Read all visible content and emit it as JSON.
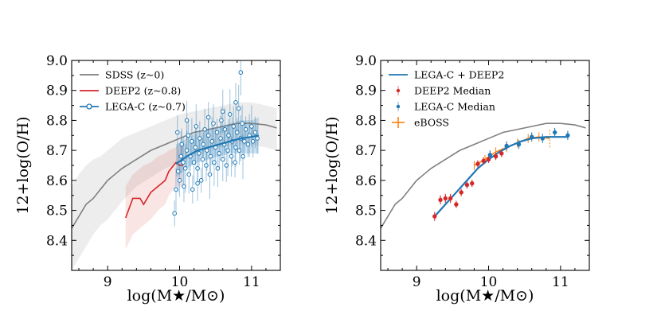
{
  "chart_data": [
    {
      "type": "scatter",
      "panel": "left",
      "xlabel": "log(M★/M⊙)",
      "ylabel": "12+log(O/H)",
      "xlim": [
        8.5,
        11.4
      ],
      "ylim": [
        8.3,
        9.0
      ],
      "xticks": [
        9,
        10,
        11
      ],
      "yticks": [
        8.4,
        8.5,
        8.6,
        8.7,
        8.8,
        8.9,
        9.0
      ],
      "ytick_labels": [
        "8.4",
        "8.5",
        "8.6",
        "8.7",
        "8.8",
        "8.9",
        "9.0"
      ],
      "legend_position": "top-left",
      "legend": [
        "SDSS (z~0)",
        "DEEP2 (z~0.8)",
        "LEGA-C (z~0.7)"
      ],
      "series": [
        {
          "name": "SDSS (z~0)",
          "color": "#808080",
          "x": [
            8.5,
            8.6,
            8.7,
            8.8,
            8.9,
            9.0,
            9.1,
            9.2,
            9.4,
            9.6,
            9.8,
            10.0,
            10.2,
            10.4,
            10.6,
            10.8,
            11.0,
            11.2,
            11.35
          ],
          "y": [
            8.44,
            8.48,
            8.52,
            8.54,
            8.57,
            8.6,
            8.62,
            8.64,
            8.67,
            8.7,
            8.72,
            8.74,
            8.76,
            8.77,
            8.78,
            8.79,
            8.79,
            8.785,
            8.775
          ],
          "band_lower": [
            8.3,
            8.34,
            8.38,
            8.42,
            8.45,
            8.47,
            8.5,
            8.53,
            8.58,
            8.61,
            8.64,
            8.66,
            8.68,
            8.7,
            8.71,
            8.72,
            8.72,
            8.71,
            8.7
          ],
          "band_upper": [
            8.58,
            8.62,
            8.65,
            8.67,
            8.68,
            8.7,
            8.72,
            8.74,
            8.76,
            8.78,
            8.8,
            8.82,
            8.83,
            8.84,
            8.85,
            8.86,
            8.86,
            8.85,
            8.84
          ]
        },
        {
          "name": "DEEP2 (z~0.8)",
          "color": "#d62728",
          "x": [
            9.25,
            9.35,
            9.45,
            9.5,
            9.6,
            9.7,
            9.8,
            9.85,
            9.95,
            10.0,
            10.05
          ],
          "y": [
            8.475,
            8.54,
            8.54,
            8.52,
            8.56,
            8.58,
            8.6,
            8.63,
            8.66,
            8.65,
            8.65
          ],
          "band_lower": [
            8.37,
            8.42,
            8.44,
            8.45,
            8.47,
            8.5,
            8.52,
            8.55,
            8.58,
            8.58,
            8.58
          ],
          "band_upper": [
            8.58,
            8.62,
            8.64,
            8.65,
            8.66,
            8.68,
            8.69,
            8.7,
            8.71,
            8.72,
            8.72
          ]
        },
        {
          "name": "LEGA-C (z~0.7)",
          "color": "#1f77b4",
          "fit_x": [
            9.95,
            10.1,
            10.25,
            10.4,
            10.55,
            10.7,
            10.85,
            11.0,
            11.1
          ],
          "fit_y": [
            8.655,
            8.68,
            8.7,
            8.71,
            8.72,
            8.73,
            8.74,
            8.745,
            8.75
          ],
          "band_lower": [
            8.61,
            8.64,
            8.66,
            8.67,
            8.68,
            8.69,
            8.69,
            8.69,
            8.69
          ],
          "band_upper": [
            8.72,
            8.74,
            8.76,
            8.77,
            8.78,
            8.79,
            8.8,
            8.8,
            8.81
          ],
          "points": [
            [
              9.93,
              8.49
            ],
            [
              9.95,
              8.57
            ],
            [
              9.98,
              8.63
            ],
            [
              10.0,
              8.6
            ],
            [
              10.02,
              8.68
            ],
            [
              10.03,
              8.72
            ],
            [
              10.05,
              8.66
            ],
            [
              10.06,
              8.58
            ],
            [
              10.08,
              8.64
            ],
            [
              10.1,
              8.7
            ],
            [
              10.12,
              8.75
            ],
            [
              10.13,
              8.62
            ],
            [
              10.15,
              8.68
            ],
            [
              10.17,
              8.73
            ],
            [
              10.18,
              8.57
            ],
            [
              10.2,
              8.66
            ],
            [
              10.22,
              8.71
            ],
            [
              10.23,
              8.78
            ],
            [
              10.25,
              8.64
            ],
            [
              10.27,
              8.69
            ],
            [
              10.28,
              8.74
            ],
            [
              10.3,
              8.6
            ],
            [
              10.32,
              8.67
            ],
            [
              10.33,
              8.72
            ],
            [
              10.35,
              8.77
            ],
            [
              10.37,
              8.65
            ],
            [
              10.38,
              8.7
            ],
            [
              10.4,
              8.75
            ],
            [
              10.42,
              8.62
            ],
            [
              10.43,
              8.68
            ],
            [
              10.45,
              8.73
            ],
            [
              10.47,
              8.79
            ],
            [
              10.48,
              8.66
            ],
            [
              10.5,
              8.71
            ],
            [
              10.52,
              8.76
            ],
            [
              10.53,
              8.64
            ],
            [
              10.55,
              8.69
            ],
            [
              10.57,
              8.74
            ],
            [
              10.58,
              8.8
            ],
            [
              10.6,
              8.67
            ],
            [
              10.62,
              8.72
            ],
            [
              10.63,
              8.77
            ],
            [
              10.65,
              8.65
            ],
            [
              10.67,
              8.7
            ],
            [
              10.68,
              8.75
            ],
            [
              10.7,
              8.82
            ],
            [
              10.72,
              8.68
            ],
            [
              10.73,
              8.73
            ],
            [
              10.75,
              8.78
            ],
            [
              10.77,
              8.66
            ],
            [
              10.78,
              8.71
            ],
            [
              10.8,
              8.76
            ],
            [
              10.82,
              8.84
            ],
            [
              10.83,
              8.7
            ],
            [
              10.85,
              8.74
            ],
            [
              10.87,
              8.79
            ],
            [
              10.88,
              8.68
            ],
            [
              10.9,
              8.73
            ],
            [
              10.92,
              8.77
            ],
            [
              10.95,
              8.72
            ],
            [
              10.97,
              8.75
            ],
            [
              11.0,
              8.78
            ],
            [
              11.02,
              8.73
            ],
            [
              11.05,
              8.76
            ],
            [
              11.08,
              8.74
            ],
            [
              10.85,
              8.96
            ],
            [
              10.78,
              8.86
            ],
            [
              10.6,
              8.83
            ],
            [
              10.4,
              8.81
            ],
            [
              10.1,
              8.8
            ],
            [
              9.97,
              8.76
            ],
            [
              10.25,
              8.59
            ]
          ]
        }
      ]
    },
    {
      "type": "line",
      "panel": "right",
      "xlabel": "log(M★/M⊙)",
      "ylabel": "12+log(O/H)",
      "xlim": [
        8.5,
        11.4
      ],
      "ylim": [
        8.3,
        9.0
      ],
      "xticks": [
        9,
        10,
        11
      ],
      "yticks": [
        8.4,
        8.5,
        8.6,
        8.7,
        8.8,
        8.9,
        9.0
      ],
      "ytick_labels": [
        "8.4",
        "8.5",
        "8.6",
        "8.7",
        "8.8",
        "8.9",
        "9.0"
      ],
      "legend_position": "top-left",
      "legend": [
        "LEGA-C + DEEP2",
        "DEEP2 Median",
        "LEGA-C Median",
        "eBOSS"
      ],
      "series": [
        {
          "name": "SDSS",
          "color": "#808080",
          "x": [
            8.5,
            8.6,
            8.7,
            8.8,
            8.9,
            9.0,
            9.1,
            9.2,
            9.4,
            9.6,
            9.8,
            10.0,
            10.2,
            10.4,
            10.6,
            10.8,
            11.0,
            11.2,
            11.35
          ],
          "y": [
            8.44,
            8.48,
            8.52,
            8.54,
            8.57,
            8.6,
            8.62,
            8.64,
            8.67,
            8.7,
            8.72,
            8.74,
            8.76,
            8.77,
            8.78,
            8.79,
            8.79,
            8.785,
            8.775
          ]
        },
        {
          "name": "LEGA-C + DEEP2",
          "color": "#1f77b4",
          "x": [
            9.25,
            9.4,
            9.55,
            9.7,
            9.85,
            10.0,
            10.15,
            10.3,
            10.45,
            10.6,
            10.8,
            11.0,
            11.1
          ],
          "y": [
            8.48,
            8.52,
            8.56,
            8.6,
            8.64,
            8.67,
            8.695,
            8.715,
            8.73,
            8.74,
            8.745,
            8.745,
            8.745
          ]
        },
        {
          "name": "DEEP2 Median",
          "color": "#d62728",
          "x": [
            9.25,
            9.33,
            9.4,
            9.47,
            9.55,
            9.62,
            9.7,
            9.77,
            9.85,
            9.93,
            10.0,
            10.1,
            10.18
          ],
          "y": [
            8.48,
            8.535,
            8.54,
            8.54,
            8.52,
            8.56,
            8.585,
            8.59,
            8.655,
            8.665,
            8.67,
            8.68,
            8.69
          ],
          "err": [
            0.015,
            0.015,
            0.015,
            0.015,
            0.012,
            0.012,
            0.012,
            0.012,
            0.012,
            0.012,
            0.012,
            0.012,
            0.012
          ]
        },
        {
          "name": "LEGA-C Median",
          "color": "#1f77b4",
          "x": [
            10.02,
            10.25,
            10.42,
            10.6,
            10.75,
            10.92,
            11.1
          ],
          "y": [
            8.685,
            8.715,
            8.72,
            8.745,
            8.74,
            8.76,
            8.75
          ],
          "err": [
            0.015,
            0.015,
            0.015,
            0.015,
            0.015,
            0.015,
            0.015
          ]
        },
        {
          "name": "eBOSS",
          "color": "#ff7f0e",
          "x": [
            9.8,
            9.95,
            10.1,
            10.25,
            10.4,
            10.55,
            10.7,
            10.85
          ],
          "y": [
            8.65,
            8.67,
            8.695,
            8.71,
            8.725,
            8.74,
            8.745,
            8.74
          ],
          "err": [
            0.015,
            0.015,
            0.015,
            0.015,
            0.015,
            0.015,
            0.015,
            0.03
          ],
          "xerr": [
            0.03,
            0.03,
            0.03,
            0.03,
            0.03,
            0.03,
            0.03,
            0.03
          ]
        }
      ]
    }
  ]
}
